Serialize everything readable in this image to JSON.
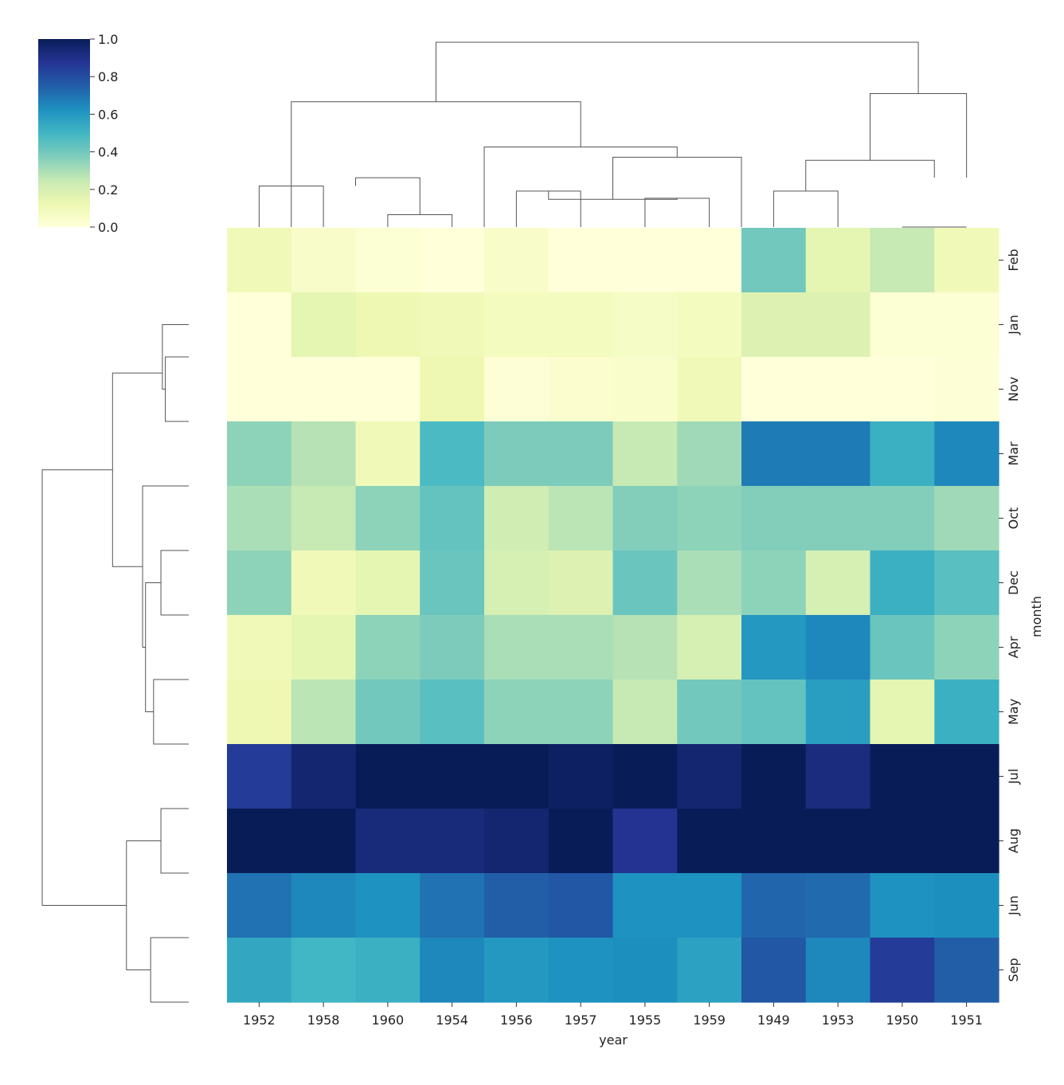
{
  "chart_data": {
    "type": "heatmap",
    "title": "",
    "xlabel": "year",
    "ylabel": "month",
    "columns": [
      "1952",
      "1958",
      "1960",
      "1954",
      "1956",
      "1957",
      "1955",
      "1959",
      "1949",
      "1953",
      "1950",
      "1951"
    ],
    "rows": [
      "Feb",
      "Jan",
      "Nov",
      "Mar",
      "Oct",
      "Dec",
      "Apr",
      "May",
      "Jul",
      "Aug",
      "Jun",
      "Sep"
    ],
    "values": [
      [
        0.1,
        0.05,
        0.02,
        0.0,
        0.05,
        0.0,
        0.0,
        0.0,
        0.4,
        0.15,
        0.25,
        0.1
      ],
      [
        0.0,
        0.15,
        0.12,
        0.1,
        0.08,
        0.08,
        0.06,
        0.08,
        0.18,
        0.18,
        0.02,
        0.02
      ],
      [
        0.0,
        0.0,
        0.0,
        0.12,
        0.01,
        0.03,
        0.04,
        0.1,
        0.0,
        0.0,
        0.0,
        0.01
      ],
      [
        0.35,
        0.28,
        0.1,
        0.48,
        0.38,
        0.38,
        0.25,
        0.32,
        0.68,
        0.68,
        0.52,
        0.65
      ],
      [
        0.3,
        0.25,
        0.35,
        0.43,
        0.22,
        0.27,
        0.37,
        0.35,
        0.37,
        0.37,
        0.37,
        0.32
      ],
      [
        0.35,
        0.1,
        0.15,
        0.42,
        0.2,
        0.18,
        0.42,
        0.3,
        0.35,
        0.2,
        0.52,
        0.45
      ],
      [
        0.1,
        0.15,
        0.35,
        0.38,
        0.3,
        0.3,
        0.28,
        0.2,
        0.6,
        0.65,
        0.42,
        0.35
      ],
      [
        0.12,
        0.27,
        0.4,
        0.45,
        0.35,
        0.35,
        0.25,
        0.4,
        0.43,
        0.58,
        0.15,
        0.52
      ],
      [
        0.85,
        0.95,
        1.0,
        1.0,
        1.0,
        0.98,
        1.0,
        0.95,
        1.0,
        0.92,
        1.0,
        1.0
      ],
      [
        1.0,
        1.0,
        0.93,
        0.93,
        0.95,
        1.0,
        0.88,
        1.0,
        1.0,
        1.0,
        1.0,
        1.0
      ],
      [
        0.7,
        0.65,
        0.62,
        0.7,
        0.75,
        0.77,
        0.62,
        0.62,
        0.73,
        0.72,
        0.62,
        0.63
      ],
      [
        0.55,
        0.5,
        0.52,
        0.65,
        0.6,
        0.62,
        0.63,
        0.57,
        0.77,
        0.65,
        0.85,
        0.75
      ]
    ],
    "colorbar": {
      "min": 0.0,
      "max": 1.0,
      "ticks": [
        "0.0",
        "0.2",
        "0.4",
        "0.6",
        "0.8",
        "1.0"
      ],
      "colors": [
        "#ffffd9",
        "#edf8b1",
        "#c7e9b4",
        "#7fcdbb",
        "#41b6c4",
        "#1d91c0",
        "#225ea8",
        "#253494",
        "#081d58"
      ]
    },
    "col_dendrogram": [
      [
        0,
        1,
        0.0,
        0.0,
        0.4,
        0.4
      ],
      [
        2,
        3,
        0.0,
        0.0,
        0.12,
        0.12
      ],
      [
        4,
        5,
        0.0,
        0.0,
        0.35,
        0.35
      ],
      [
        6,
        7,
        0.0,
        0.0,
        0.28,
        0.28
      ],
      [
        8,
        9,
        0.0,
        0.0,
        0.35,
        0.35
      ],
      [
        10,
        11,
        0.0,
        0.0,
        0.0,
        0.0
      ]
    ],
    "col_links": [
      [
        1.5,
        2.5,
        0.4,
        0.12,
        0.48,
        0.48
      ],
      [
        4.5,
        6.5,
        0.35,
        0.28,
        0.27,
        0.27
      ],
      [
        5.5,
        7.5,
        0.27,
        0.0,
        0.68,
        0.68
      ],
      [
        3.5,
        6.5,
        0.0,
        0.68,
        0.78,
        0.78
      ],
      [
        0.5,
        5.0,
        0.0,
        0.78,
        1.22,
        1.22
      ],
      [
        8.5,
        10.5,
        0.35,
        0.48,
        0.65,
        0.65
      ],
      [
        9.5,
        11.0,
        0.65,
        0.48,
        1.3,
        1.3
      ],
      [
        2.75,
        10.25,
        1.22,
        1.3,
        1.8,
        1.8
      ]
    ],
    "row_links": [
      [
        1.5,
        2.5,
        0.0,
        0.0,
        0.32,
        0.32
      ],
      [
        1.0,
        2.0,
        0.0,
        0.32,
        0.36,
        0.36
      ],
      [
        4.5,
        5.5,
        0.0,
        0.0,
        0.38,
        0.38
      ],
      [
        6.5,
        7.5,
        0.0,
        0.0,
        0.48,
        0.48
      ],
      [
        5.0,
        7.0,
        0.38,
        0.48,
        0.59,
        0.59
      ],
      [
        3.5,
        6.0,
        0.0,
        0.59,
        0.63,
        0.63
      ],
      [
        1.75,
        4.75,
        0.36,
        0.63,
        1.04,
        1.04
      ],
      [
        8.5,
        9.5,
        0.0,
        0.0,
        0.38,
        0.38
      ],
      [
        10.5,
        11.5,
        0.0,
        0.0,
        0.52,
        0.52
      ],
      [
        9.0,
        11.0,
        0.38,
        0.52,
        0.85,
        0.85
      ],
      [
        3.25,
        10.0,
        1.04,
        0.85,
        2.0,
        2.0
      ]
    ]
  }
}
